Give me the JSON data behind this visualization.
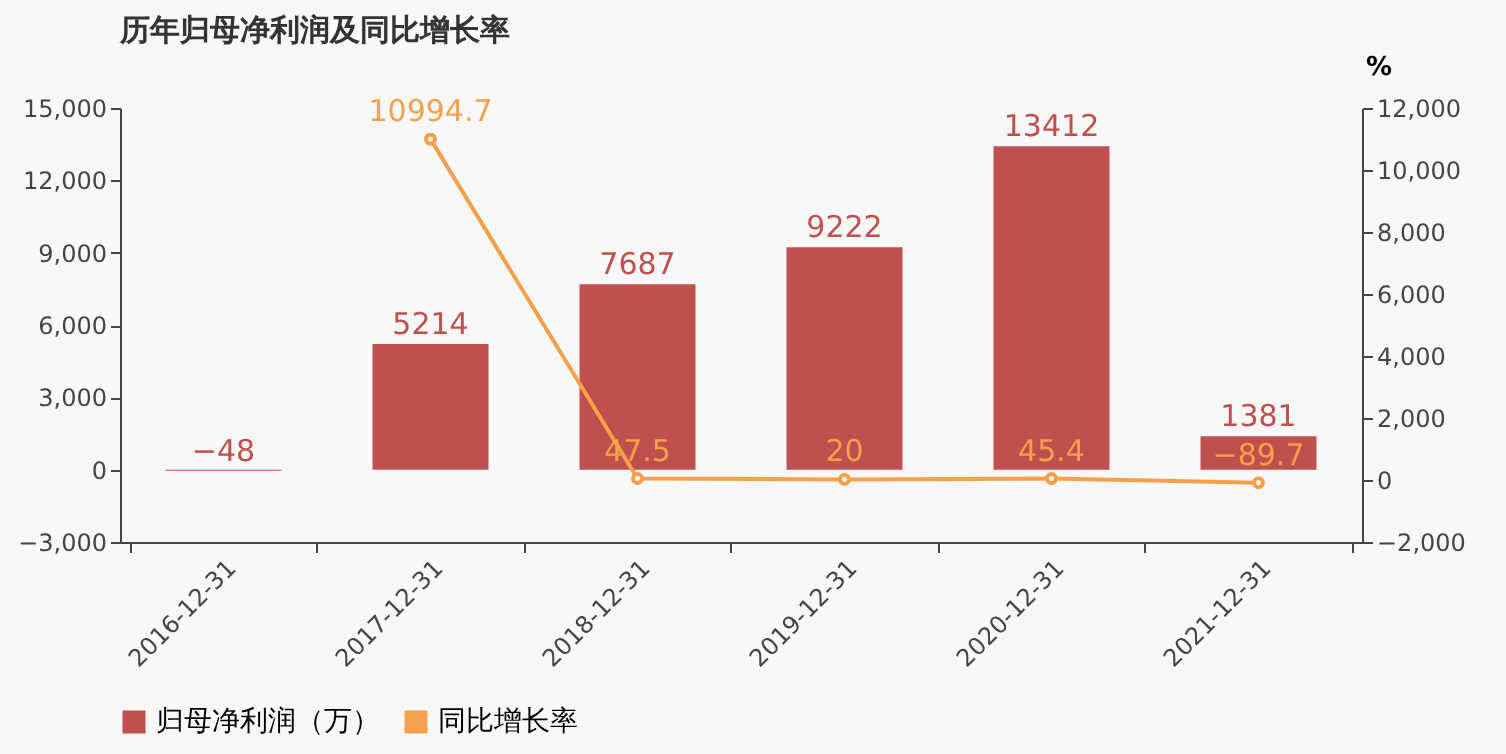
{
  "chart_data": {
    "type": "bar",
    "title": "历年归母净利润及同比增长率",
    "y2label": "%",
    "categories": [
      "2016-12-31",
      "2017-12-31",
      "2018-12-31",
      "2019-12-31",
      "2020-12-31",
      "2021-12-31"
    ],
    "series": [
      {
        "name": "归母净利润（万）",
        "color": "#c0504d",
        "values": [
          -48,
          5214,
          7687,
          9222,
          13412,
          1381
        ]
      },
      {
        "name": "同比增长率",
        "type": "line",
        "axis": "y2",
        "color": "#f5a04a",
        "values": [
          null,
          10994.7,
          47.5,
          20,
          45.4,
          -89.7
        ]
      }
    ],
    "ylim": [
      -3000,
      15000
    ],
    "yticks": [
      {
        "value": -3000,
        "label": "−3,000"
      },
      0,
      {
        "value": 3000,
        "label": "3,000"
      },
      {
        "value": 6000,
        "label": "6,000"
      },
      {
        "value": 9000,
        "label": "9,000"
      },
      {
        "value": 12000,
        "label": "12,000"
      },
      {
        "value": 15000,
        "label": "15,000"
      }
    ],
    "y2lim": [
      -2000,
      12000
    ],
    "y2ticks": [
      {
        "value": -2000,
        "label": "−2,000"
      },
      0,
      {
        "value": 2000,
        "label": "2,000"
      },
      {
        "value": 4000,
        "label": "4,000"
      },
      {
        "value": 6000,
        "label": "6,000"
      },
      {
        "value": 8000,
        "label": "8,000"
      },
      {
        "value": 10000,
        "label": "10,000"
      },
      {
        "value": 12000,
        "label": "12,000"
      }
    ],
    "data_labels": true,
    "grid": false,
    "legend": "bottom",
    "marker": "circle",
    "line_style": "solid"
  }
}
